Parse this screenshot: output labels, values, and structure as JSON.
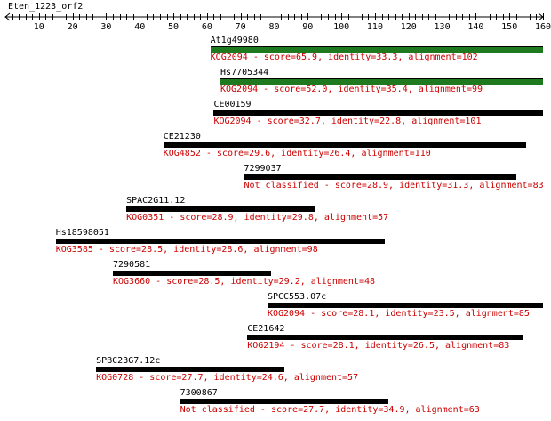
{
  "query": {
    "name": "Eten_1223_orf2",
    "axis": {
      "min": 0,
      "max": 160,
      "ticks": [
        10,
        20,
        30,
        40,
        50,
        60,
        70,
        80,
        90,
        100,
        110,
        120,
        130,
        140,
        150,
        160
      ]
    }
  },
  "colors": {
    "green_bar": "#1f7a1f",
    "black_bar": "#000000",
    "desc": "#cc0000"
  },
  "hits": [
    {
      "name": "At1g49980",
      "start": 61,
      "end": 160,
      "color": "green",
      "desc": "KOG2094 - score=65.9, identity=33.3, alignment=102"
    },
    {
      "name": "Hs7705344",
      "start": 64,
      "end": 160,
      "color": "green",
      "desc": "KOG2094 - score=52.0, identity=35.4, alignment=99"
    },
    {
      "name": "CE00159",
      "start": 62,
      "end": 160,
      "color": "black",
      "desc": "KOG2094 - score=32.7, identity=22.8, alignment=101"
    },
    {
      "name": "CE21230",
      "start": 47,
      "end": 155,
      "color": "black",
      "desc": "KOG4852 - score=29.6, identity=26.4, alignment=110"
    },
    {
      "name": "7299037",
      "start": 71,
      "end": 152,
      "color": "black",
      "desc": "Not classified - score=28.9, identity=31.3, alignment=83"
    },
    {
      "name": "SPAC2G11.12",
      "start": 36,
      "end": 92,
      "color": "black",
      "desc": "KOG0351 - score=28.9, identity=29.8, alignment=57"
    },
    {
      "name": "Hs18598051",
      "start": 15,
      "end": 113,
      "color": "black",
      "desc": "KOG3585 - score=28.5, identity=28.6, alignment=98"
    },
    {
      "name": "7290581",
      "start": 32,
      "end": 79,
      "color": "black",
      "desc": "KOG3660 - score=28.5, identity=29.2, alignment=48"
    },
    {
      "name": "SPCC553.07c",
      "start": 78,
      "end": 160,
      "color": "black",
      "desc": "KOG2094 - score=28.1, identity=23.5, alignment=85"
    },
    {
      "name": "CE21642",
      "start": 72,
      "end": 154,
      "color": "black",
      "desc": "KOG2194 - score=28.1, identity=26.5, alignment=83"
    },
    {
      "name": "SPBC23G7.12c",
      "start": 27,
      "end": 83,
      "color": "black",
      "desc": "KOG0728 - score=27.7, identity=24.6, alignment=57"
    },
    {
      "name": "7300867",
      "start": 52,
      "end": 114,
      "color": "black",
      "desc": "Not classified - score=27.7, identity=34.9, alignment=63"
    }
  ]
}
